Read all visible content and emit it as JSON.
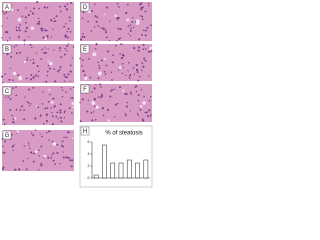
{
  "panels": [
    {
      "label": "A"
    },
    {
      "label": "B"
    },
    {
      "label": "C"
    },
    {
      "label": "G"
    },
    {
      "label": "D"
    },
    {
      "label": "E"
    },
    {
      "label": "F"
    },
    {
      "label": "H"
    }
  ],
  "chart_data": {
    "type": "bar",
    "title": "% of steatosis",
    "categories": [
      null,
      null,
      null,
      null,
      null,
      null,
      null
    ],
    "values": [
      0.5,
      5.5,
      2.5,
      2.5,
      3,
      2.5,
      3
    ],
    "color": "#ffffff",
    "ylim": [
      0,
      6
    ],
    "yticks": [
      0,
      2,
      4,
      6
    ],
    "grid": false
  }
}
